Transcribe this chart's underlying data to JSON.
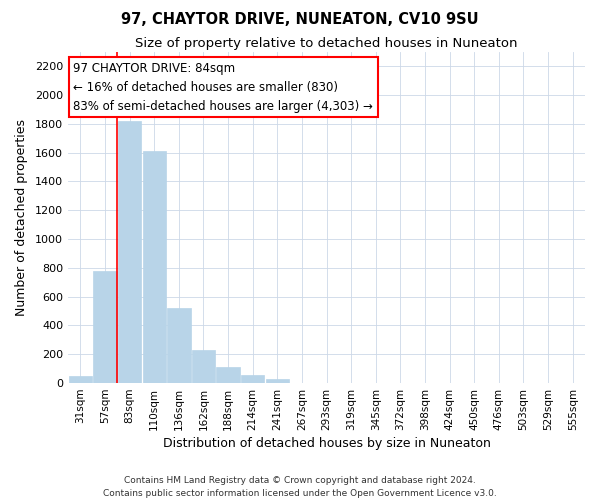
{
  "title": "97, CHAYTOR DRIVE, NUNEATON, CV10 9SU",
  "subtitle": "Size of property relative to detached houses in Nuneaton",
  "xlabel": "Distribution of detached houses by size in Nuneaton",
  "ylabel": "Number of detached properties",
  "bar_labels": [
    "31sqm",
    "57sqm",
    "83sqm",
    "110sqm",
    "136sqm",
    "162sqm",
    "188sqm",
    "214sqm",
    "241sqm",
    "267sqm",
    "293sqm",
    "319sqm",
    "345sqm",
    "372sqm",
    "398sqm",
    "424sqm",
    "450sqm",
    "476sqm",
    "503sqm",
    "529sqm",
    "555sqm"
  ],
  "bar_values": [
    50,
    780,
    1820,
    1610,
    520,
    230,
    110,
    55,
    25,
    0,
    0,
    0,
    0,
    0,
    0,
    0,
    0,
    0,
    0,
    0,
    0
  ],
  "bar_color": "#b8d4e8",
  "bar_edge_color": "#b8d4e8",
  "red_line_x": 1.5,
  "annotation_title": "97 CHAYTOR DRIVE: 84sqm",
  "annotation_line1": "← 16% of detached houses are smaller (830)",
  "annotation_line2": "83% of semi-detached houses are larger (4,303) →",
  "ylim": [
    0,
    2300
  ],
  "yticks": [
    0,
    200,
    400,
    600,
    800,
    1000,
    1200,
    1400,
    1600,
    1800,
    2000,
    2200
  ],
  "footer1": "Contains HM Land Registry data © Crown copyright and database right 2024.",
  "footer2": "Contains public sector information licensed under the Open Government Licence v3.0.",
  "background_color": "#ffffff",
  "grid_color": "#ccd8e8"
}
